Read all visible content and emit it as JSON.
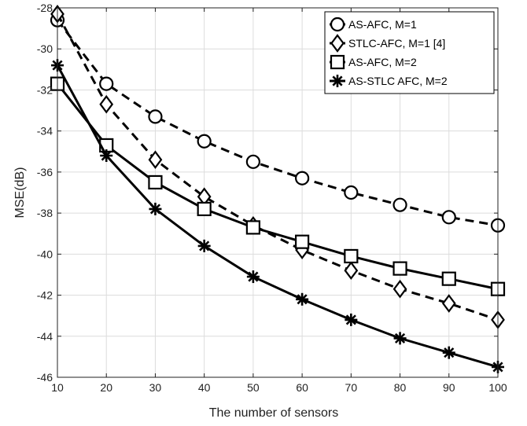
{
  "chart_data": {
    "type": "line",
    "title": "",
    "xlabel": "The number of sensors",
    "ylabel": "MSE(dB)",
    "xlim": [
      10,
      100
    ],
    "ylim": [
      -46,
      -28
    ],
    "xticks": [
      10,
      20,
      30,
      40,
      50,
      60,
      70,
      80,
      90,
      100
    ],
    "yticks": [
      -28,
      -30,
      -32,
      -34,
      -36,
      -38,
      -40,
      -42,
      -44,
      -46
    ],
    "grid": true,
    "legend_position": "top-right",
    "x": [
      10,
      20,
      30,
      40,
      50,
      60,
      70,
      80,
      90,
      100
    ],
    "series": [
      {
        "name": "AS-AFC, M=1",
        "marker": "circle",
        "line_style": "dashed",
        "values": [
          -28.6,
          -31.7,
          -33.3,
          -34.5,
          -35.5,
          -36.3,
          -37.0,
          -37.6,
          -38.2,
          -38.6
        ]
      },
      {
        "name": "STLC-AFC, M=1 [4]",
        "marker": "diamond",
        "line_style": "dashed",
        "values": [
          -28.3,
          -32.7,
          -35.4,
          -37.2,
          -38.6,
          -39.8,
          -40.8,
          -41.7,
          -42.4,
          -43.2
        ]
      },
      {
        "name": "AS-AFC, M=2",
        "marker": "square",
        "line_style": "solid",
        "values": [
          -31.7,
          -34.7,
          -36.5,
          -37.8,
          -38.7,
          -39.4,
          -40.1,
          -40.7,
          -41.2,
          -41.7
        ]
      },
      {
        "name": "AS-STLC AFC, M=2",
        "marker": "asterisk",
        "line_style": "solid",
        "values": [
          -30.8,
          -35.2,
          -37.8,
          -39.6,
          -41.1,
          -42.2,
          -43.2,
          -44.1,
          -44.8,
          -45.5
        ]
      }
    ],
    "colors": {
      "line": "#000000",
      "grid": "#dcdcdc",
      "axis": "#222222",
      "background": "#ffffff"
    }
  }
}
